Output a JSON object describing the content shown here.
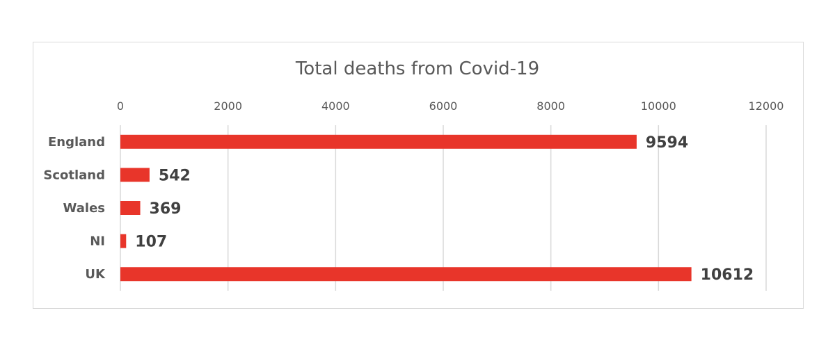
{
  "chart_data": {
    "type": "bar",
    "orientation": "horizontal",
    "title": "Total deaths from Covid-19",
    "categories": [
      "England",
      "Scotland",
      "Wales",
      "NI",
      "UK"
    ],
    "values": [
      9594,
      542,
      369,
      107,
      10612
    ],
    "data_labels": [
      "9594",
      "542",
      "369",
      "107",
      "10612"
    ],
    "xlim": [
      0,
      12000
    ],
    "x_ticks": [
      0,
      2000,
      4000,
      6000,
      8000,
      10000,
      12000
    ],
    "x_tick_labels": [
      "0",
      "2000",
      "4000",
      "6000",
      "8000",
      "10000",
      "12000"
    ],
    "x_axis_position": "top",
    "grid": true,
    "legend": "none",
    "bar_color": "#e8352a",
    "gridline_color": "#d9d9d9",
    "text_color": "#595959"
  }
}
